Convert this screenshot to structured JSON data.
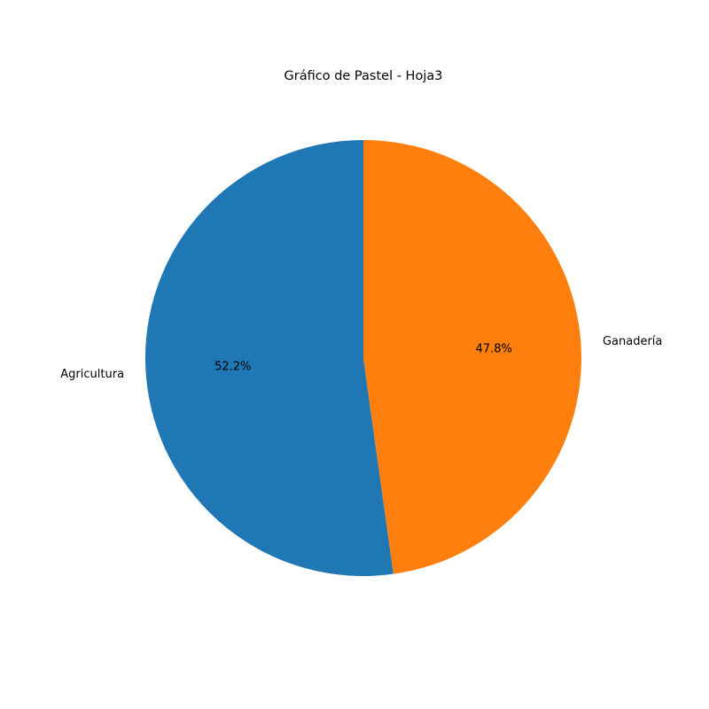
{
  "chart_data": {
    "type": "pie",
    "title": "Gráfico de Pastel - Hoja3",
    "categories": [
      "Agricultura",
      "Ganadería"
    ],
    "values": [
      52.2,
      47.8
    ],
    "percent_labels": [
      "52.2%",
      "47.8%"
    ],
    "colors": [
      "#1f77b4",
      "#ff7f0e"
    ],
    "start_angle_deg": 90,
    "direction": "counterclockwise",
    "legend": "none"
  }
}
